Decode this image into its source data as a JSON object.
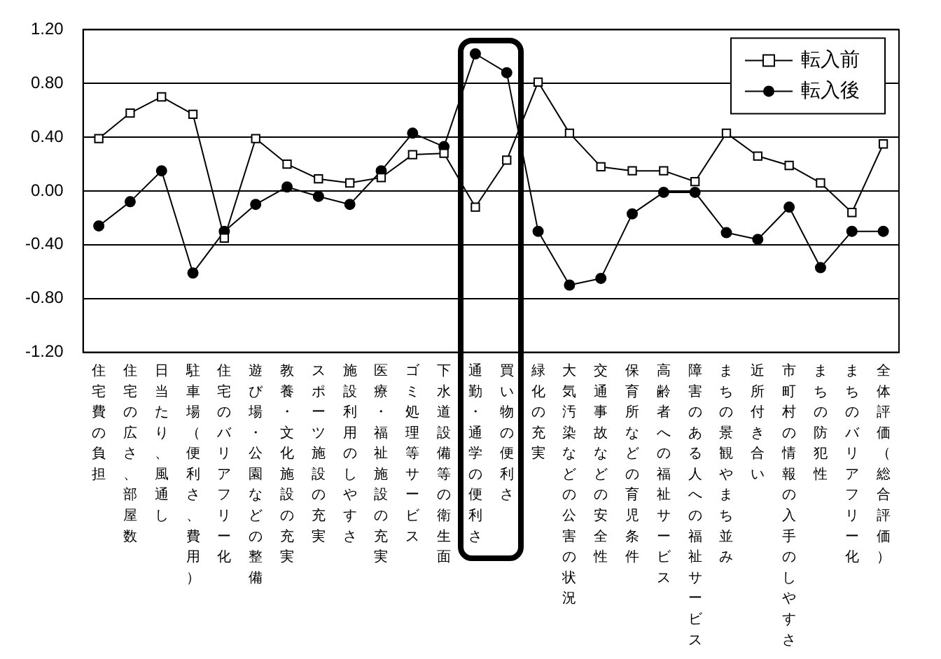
{
  "chart_data": {
    "type": "line",
    "categories": [
      "住宅費の負担",
      "住宅の広さ、部屋数",
      "日当たり、風通し",
      "駐車場（便利さ、費用）",
      "住宅のバリアフリー化",
      "遊び場・公園などの整備",
      "教養・文化施設の充実",
      "スポーツ施設の充実",
      "施設利用のしやすさ",
      "医療・福祉施設の充実",
      "ゴミ処理等サービス",
      "下水道設備等の衛生面",
      "通勤・通学の便利さ",
      "買い物の便利さ",
      "緑化の充実",
      "大気汚染などの公害の状況",
      "交通事故などの安全性",
      "保育所などの育児条件",
      "高齢者への福祉サービス",
      "障害のある人への福祉サービス",
      "まちの景観やまち並み",
      "近所付き合い",
      "市町村の情報の入手のしやすさ",
      "まちの防犯性",
      "まちのバリアフリー化",
      "全体評価（総合評価）"
    ],
    "series": [
      {
        "name": "転入前",
        "color": "#000000",
        "marker": "square",
        "values": [
          0.39,
          0.58,
          0.7,
          0.57,
          -0.35,
          0.39,
          0.2,
          0.09,
          0.06,
          0.1,
          0.27,
          0.28,
          -0.12,
          0.23,
          0.81,
          0.43,
          0.18,
          0.15,
          0.15,
          0.07,
          0.43,
          0.26,
          0.19,
          0.06,
          -0.16,
          0.35
        ]
      },
      {
        "name": "転入後",
        "color": "#000000",
        "marker": "circle",
        "values": [
          -0.26,
          -0.08,
          0.15,
          -0.61,
          -0.3,
          -0.1,
          0.03,
          -0.04,
          -0.1,
          0.15,
          0.43,
          0.33,
          1.02,
          0.88,
          -0.3,
          -0.7,
          -0.65,
          -0.17,
          -0.01,
          -0.01,
          -0.31,
          -0.36,
          -0.12,
          -0.57,
          -0.3,
          -0.3
        ]
      }
    ],
    "ylim": [
      -1.2,
      1.2
    ],
    "yticks": [
      {
        "value": -1.2,
        "label": "-1.20"
      },
      {
        "value": -0.8,
        "label": "-0.80"
      },
      {
        "value": -0.4,
        "label": "-0.40"
      },
      {
        "value": 0,
        "label": "0.00"
      },
      {
        "value": 0.4,
        "label": "0.40"
      },
      {
        "value": 0.8,
        "label": "0.80"
      },
      {
        "value": 1.2,
        "label": "1.20"
      }
    ],
    "grid": "y",
    "legend": "top right"
  }
}
